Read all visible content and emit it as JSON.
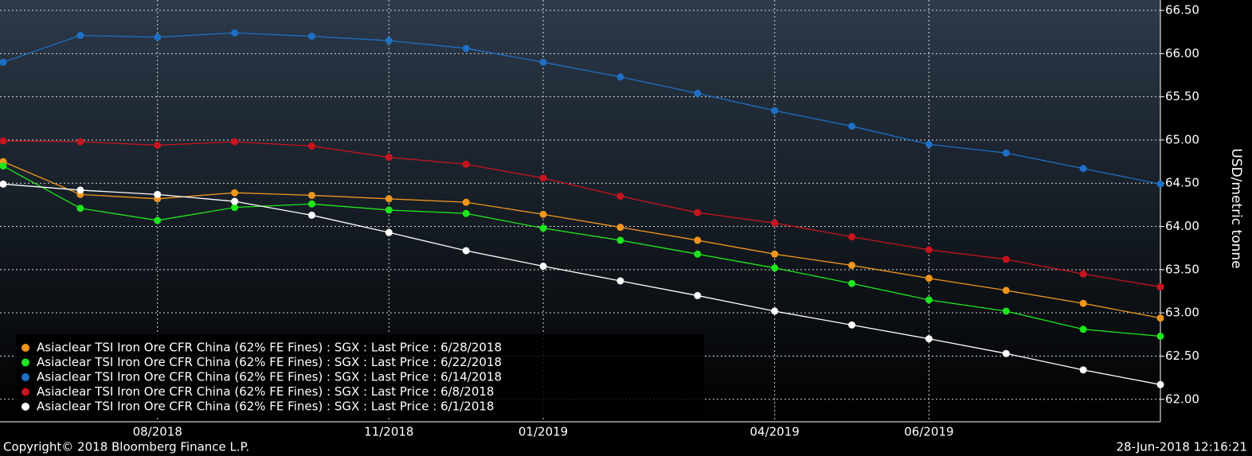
{
  "chart_data": {
    "type": "line",
    "categories": [
      null,
      null,
      "08/2018",
      null,
      null,
      "11/2018",
      null,
      "01/2019",
      null,
      null,
      "04/2019",
      null,
      "06/2019",
      null,
      null,
      null
    ],
    "y_label": "USD/metric tonne",
    "ylim": [
      61.74,
      66.62
    ],
    "yticks": [
      {
        "value": 62,
        "label": "62.00"
      },
      {
        "value": 62.5,
        "label": "62.50"
      },
      {
        "value": 63,
        "label": "63.00"
      },
      {
        "value": 63.5,
        "label": "63.50"
      },
      {
        "value": 64,
        "label": "64.00"
      },
      {
        "value": 64.5,
        "label": "64.50"
      },
      {
        "value": 65,
        "label": "65.00"
      },
      {
        "value": 65.5,
        "label": "65.50"
      },
      {
        "value": 66,
        "label": "66.00"
      },
      {
        "value": 66.5,
        "label": "66.50"
      }
    ],
    "grid": true,
    "legend": "lower left",
    "series": [
      {
        "name": "Asiaclear TSI Iron Ore CFR China (62% FE Fines) : SGX : Last Price : 6/28/2018",
        "color": "#f0961e",
        "values": [
          64.75,
          64.37,
          64.32,
          64.39,
          64.36,
          64.32,
          64.28,
          64.14,
          63.99,
          63.84,
          63.68,
          63.55,
          63.4,
          63.26,
          63.11,
          62.94
        ]
      },
      {
        "name": "Asiaclear TSI Iron Ore CFR China (62% FE Fines) : SGX : Last Price : 6/22/2018",
        "color": "#1ee61e",
        "values": [
          64.7,
          64.21,
          64.07,
          64.22,
          64.26,
          64.19,
          64.15,
          63.98,
          63.84,
          63.68,
          63.52,
          63.34,
          63.15,
          63.02,
          62.81,
          62.73
        ]
      },
      {
        "name": "Asiaclear TSI Iron Ore CFR China (62% FE Fines) : SGX : Last Price : 6/14/2018",
        "color": "#1f6fc5",
        "values": [
          65.9,
          66.21,
          66.19,
          66.24,
          66.2,
          66.15,
          66.06,
          65.9,
          65.73,
          65.54,
          65.34,
          65.16,
          64.95,
          64.85,
          64.67,
          64.49
        ]
      },
      {
        "name": "Asiaclear TSI Iron Ore CFR China (62% FE Fines) : SGX : Last Price : 6/8/2018",
        "color": "#c8141e",
        "values": [
          64.99,
          64.98,
          64.94,
          64.98,
          64.93,
          64.8,
          64.72,
          64.56,
          64.35,
          64.16,
          64.04,
          63.88,
          63.73,
          63.62,
          63.45,
          63.3
        ]
      },
      {
        "name": "Asiaclear TSI Iron Ore CFR China (62% FE Fines) : SGX : Last Price : 6/1/2018",
        "color": "#ffffff",
        "values": [
          64.49,
          64.42,
          64.37,
          64.29,
          64.13,
          63.93,
          63.72,
          63.54,
          63.37,
          63.2,
          63.02,
          62.86,
          62.7,
          62.53,
          62.34,
          62.17
        ]
      }
    ]
  },
  "footer": {
    "copyright": "Copyright© 2018 Bloomberg Finance L.P.",
    "timestamp": "28-Jun-2018 12:16:21"
  }
}
